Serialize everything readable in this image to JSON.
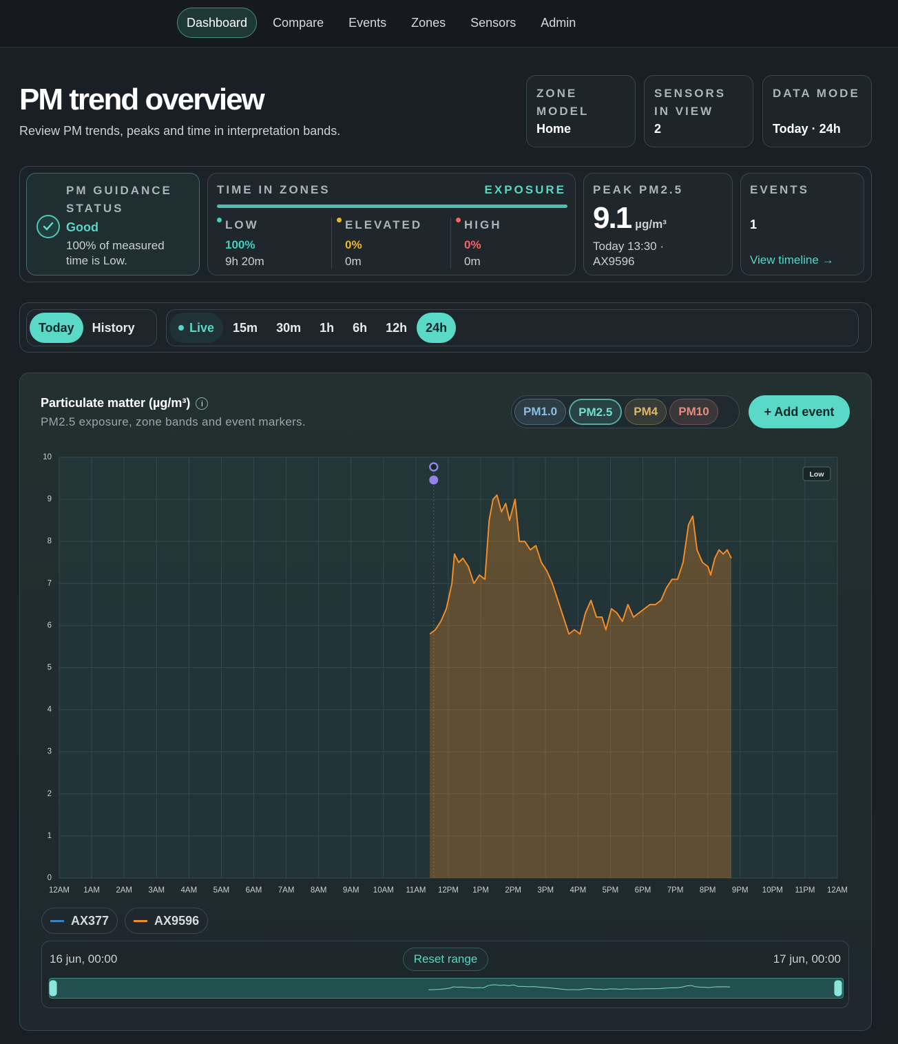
{
  "nav": {
    "items": [
      "Dashboard",
      "Compare",
      "Events",
      "Zones",
      "Sensors",
      "Admin"
    ],
    "active": 0
  },
  "header": {
    "title": "PM trend overview",
    "subtitle": "Review PM trends, peaks and time in interpretation bands."
  },
  "stats": [
    {
      "label": "ZONE MODEL",
      "value": "Home"
    },
    {
      "label": "SENSORS IN VIEW",
      "value": "2"
    },
    {
      "label": "DATA MODE",
      "value": "Today · 24h"
    }
  ],
  "guidance": {
    "label": "PM GUIDANCE STATUS",
    "status": "Good",
    "text": "100% of measured time is Low."
  },
  "zones": {
    "label": "TIME IN ZONES",
    "tag": "EXPOSURE",
    "items": [
      {
        "name": "LOW",
        "share": "100%",
        "time": "9h 20m",
        "color": "#3fd1c0"
      },
      {
        "name": "ELEVATED",
        "share": "0%",
        "time": "0m",
        "color": "#f0b429"
      },
      {
        "name": "HIGH",
        "share": "0%",
        "time": "0m",
        "color": "#f06565"
      }
    ]
  },
  "peak": {
    "label": "PEAK PM2.5",
    "value": "9.1",
    "unit": "µg/m³",
    "detail": "Today 13:30 · AX9596"
  },
  "events": {
    "label": "EVENTS",
    "count": "1",
    "link": "View timeline →"
  },
  "modes": {
    "items": [
      "Today",
      "History"
    ],
    "active": 0
  },
  "windows": {
    "items": [
      "Live",
      "15m",
      "30m",
      "1h",
      "6h",
      "12h",
      "24h"
    ],
    "active": 6
  },
  "panel": {
    "title": "Particulate matter (µg/m³)",
    "info": "i",
    "subtitle": "PM2.5 exposure, zone bands and event markers.",
    "pollutants": [
      {
        "name": "PM1.0",
        "color": "#8fbde0"
      },
      {
        "name": "PM2.5",
        "color": "#6fe0cf"
      },
      {
        "name": "PM4",
        "color": "#dcb66a"
      },
      {
        "name": "PM10",
        "color": "#e58c84"
      }
    ],
    "active": 1,
    "action": "+ Add event"
  },
  "chart_data": {
    "type": "area",
    "band_label": "Low",
    "grid": true,
    "xlim": [
      0,
      24
    ],
    "ylim": [
      0,
      10
    ],
    "xticks": [
      {
        "value": 0,
        "label": "12AM"
      },
      {
        "value": 1,
        "label": "1AM"
      },
      {
        "value": 2,
        "label": "2AM"
      },
      {
        "value": 3,
        "label": "3AM"
      },
      {
        "value": 4,
        "label": "4AM"
      },
      {
        "value": 5,
        "label": "5AM"
      },
      {
        "value": 6,
        "label": "6AM"
      },
      {
        "value": 7,
        "label": "7AM"
      },
      {
        "value": 8,
        "label": "8AM"
      },
      {
        "value": 9,
        "label": "9AM"
      },
      {
        "value": 10,
        "label": "10AM"
      },
      {
        "value": 11,
        "label": "11AM"
      },
      {
        "value": 12,
        "label": "12PM"
      },
      {
        "value": 13,
        "label": "1PM"
      },
      {
        "value": 14,
        "label": "2PM"
      },
      {
        "value": 15,
        "label": "3PM"
      },
      {
        "value": 16,
        "label": "4PM"
      },
      {
        "value": 17,
        "label": "5PM"
      },
      {
        "value": 18,
        "label": "6PM"
      },
      {
        "value": 19,
        "label": "7PM"
      },
      {
        "value": 20,
        "label": "8PM"
      },
      {
        "value": 21,
        "label": "9PM"
      },
      {
        "value": 22,
        "label": "10PM"
      },
      {
        "value": 23,
        "label": "11PM"
      },
      {
        "value": 24,
        "label": "12AM"
      }
    ],
    "yticks": [
      0,
      1,
      2,
      3,
      4,
      5,
      6,
      7,
      8,
      9,
      10
    ],
    "series": [
      {
        "name": "AX377",
        "color": "#3b82c4",
        "x": [],
        "values": []
      },
      {
        "name": "AX9596",
        "color": "#f28c28",
        "x": [
          11.43,
          11.6,
          11.77,
          11.94,
          12.11,
          12.19,
          12.32,
          12.45,
          12.62,
          12.79,
          12.96,
          13.13,
          13.26,
          13.38,
          13.5,
          13.64,
          13.77,
          13.89,
          14.06,
          14.19,
          14.36,
          14.53,
          14.7,
          14.87,
          15.04,
          15.21,
          15.38,
          15.55,
          15.72,
          15.89,
          16.06,
          16.23,
          16.4,
          16.57,
          16.74,
          16.86,
          17.03,
          17.2,
          17.37,
          17.54,
          17.71,
          17.88,
          18.05,
          18.22,
          18.39,
          18.56,
          18.73,
          18.9,
          19.07,
          19.24,
          19.41,
          19.54,
          19.67,
          19.84,
          20.01,
          20.09,
          20.22,
          20.35,
          20.48,
          20.6,
          20.73
        ],
        "values": [
          5.8,
          5.9,
          6.1,
          6.4,
          7.0,
          7.7,
          7.5,
          7.6,
          7.4,
          7.0,
          7.2,
          7.1,
          8.5,
          9.0,
          9.1,
          8.7,
          8.9,
          8.5,
          9.0,
          8.0,
          8.0,
          7.8,
          7.9,
          7.5,
          7.3,
          7.0,
          6.6,
          6.2,
          5.8,
          5.9,
          5.8,
          6.3,
          6.6,
          6.2,
          6.2,
          5.9,
          6.4,
          6.3,
          6.1,
          6.5,
          6.2,
          6.3,
          6.4,
          6.5,
          6.5,
          6.6,
          6.9,
          7.1,
          7.1,
          7.5,
          8.4,
          8.6,
          7.8,
          7.5,
          7.4,
          7.2,
          7.6,
          7.8,
          7.7,
          7.8,
          7.6
        ]
      }
    ],
    "events": [
      {
        "x": 11.55,
        "color": "#8f84e6"
      }
    ]
  },
  "range": {
    "start": "16 jun, 00:00",
    "end": "17 jun, 00:00",
    "reset": "Reset range"
  }
}
